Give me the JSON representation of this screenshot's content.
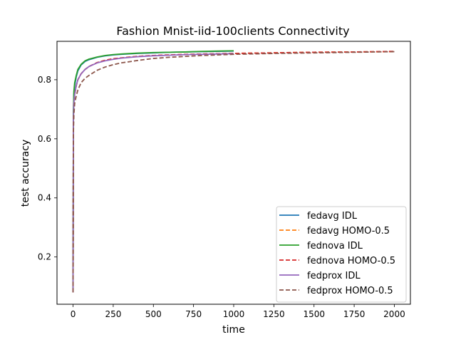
{
  "chart_data": {
    "type": "line",
    "title": "Fashion Mnist-iid-100clients Connectivity",
    "xlabel": "time",
    "ylabel": "test accuracy",
    "xlim": [
      -100,
      2100
    ],
    "ylim": [
      0.04,
      0.93
    ],
    "xticks": [
      0,
      250,
      500,
      750,
      1000,
      1250,
      1500,
      1750,
      2000
    ],
    "yticks": [
      0.2,
      0.4,
      0.6,
      0.8
    ],
    "grid": false,
    "legend_position": "lower-right",
    "series": [
      {
        "name": "fedavg IDL",
        "color": "#1f77b4",
        "dash": "solid",
        "x": [
          0,
          2,
          5,
          10,
          20,
          30,
          50,
          75,
          100,
          150,
          200,
          250,
          300,
          400,
          500,
          600,
          700,
          800,
          900,
          1000
        ],
        "y": [
          0.08,
          0.68,
          0.75,
          0.78,
          0.81,
          0.83,
          0.85,
          0.862,
          0.868,
          0.876,
          0.881,
          0.884,
          0.886,
          0.889,
          0.891,
          0.893,
          0.894,
          0.895,
          0.896,
          0.897
        ]
      },
      {
        "name": "fedavg HOMO-0.5",
        "color": "#ff7f0e",
        "dash": "dashed",
        "x": [
          0,
          2,
          5,
          10,
          20,
          30,
          50,
          75,
          100,
          150,
          200,
          250,
          300,
          400,
          500,
          600,
          700,
          800,
          900,
          1000,
          1250,
          1500,
          1750,
          2000
        ],
        "y": [
          0.08,
          0.66,
          0.72,
          0.75,
          0.78,
          0.8,
          0.82,
          0.835,
          0.845,
          0.858,
          0.866,
          0.871,
          0.874,
          0.879,
          0.882,
          0.884,
          0.885,
          0.887,
          0.888,
          0.889,
          0.891,
          0.893,
          0.894,
          0.895
        ]
      },
      {
        "name": "fednova IDL",
        "color": "#2ca02c",
        "dash": "solid",
        "x": [
          0,
          2,
          5,
          10,
          20,
          30,
          50,
          75,
          100,
          150,
          200,
          250,
          300,
          400,
          500,
          600,
          700,
          800,
          900,
          1000
        ],
        "y": [
          0.08,
          0.69,
          0.76,
          0.79,
          0.815,
          0.835,
          0.852,
          0.864,
          0.87,
          0.877,
          0.882,
          0.885,
          0.887,
          0.89,
          0.892,
          0.893,
          0.894,
          0.896,
          0.897,
          0.898
        ]
      },
      {
        "name": "fednova HOMO-0.5",
        "color": "#d62728",
        "dash": "dashed",
        "x": [
          0,
          2,
          5,
          10,
          20,
          30,
          50,
          75,
          100,
          150,
          200,
          250,
          300,
          400,
          500,
          600,
          700,
          800,
          900,
          1000,
          1250,
          1500,
          1750,
          2000
        ],
        "y": [
          0.08,
          0.66,
          0.72,
          0.75,
          0.78,
          0.8,
          0.82,
          0.835,
          0.845,
          0.858,
          0.866,
          0.871,
          0.874,
          0.879,
          0.882,
          0.884,
          0.886,
          0.887,
          0.888,
          0.889,
          0.891,
          0.893,
          0.894,
          0.896
        ]
      },
      {
        "name": "fedprox IDL",
        "color": "#9467bd",
        "dash": "solid",
        "x": [
          0,
          2,
          5,
          10,
          20,
          30,
          50,
          75,
          100,
          150,
          200,
          250,
          300,
          400,
          500,
          600,
          700,
          800,
          900,
          1000
        ],
        "y": [
          0.08,
          0.66,
          0.72,
          0.75,
          0.78,
          0.8,
          0.82,
          0.835,
          0.845,
          0.857,
          0.864,
          0.869,
          0.873,
          0.878,
          0.881,
          0.883,
          0.885,
          0.886,
          0.887,
          0.888
        ]
      },
      {
        "name": "fedprox HOMO-0.5",
        "color": "#8c564b",
        "dash": "dashed",
        "x": [
          0,
          2,
          5,
          10,
          20,
          30,
          50,
          75,
          100,
          150,
          200,
          250,
          300,
          400,
          500,
          600,
          700,
          800,
          900,
          1000,
          1250,
          1500,
          1750,
          2000
        ],
        "y": [
          0.08,
          0.62,
          0.68,
          0.72,
          0.745,
          0.765,
          0.79,
          0.805,
          0.815,
          0.832,
          0.843,
          0.851,
          0.857,
          0.865,
          0.872,
          0.876,
          0.879,
          0.882,
          0.884,
          0.886,
          0.889,
          0.891,
          0.893,
          0.895
        ]
      }
    ]
  }
}
